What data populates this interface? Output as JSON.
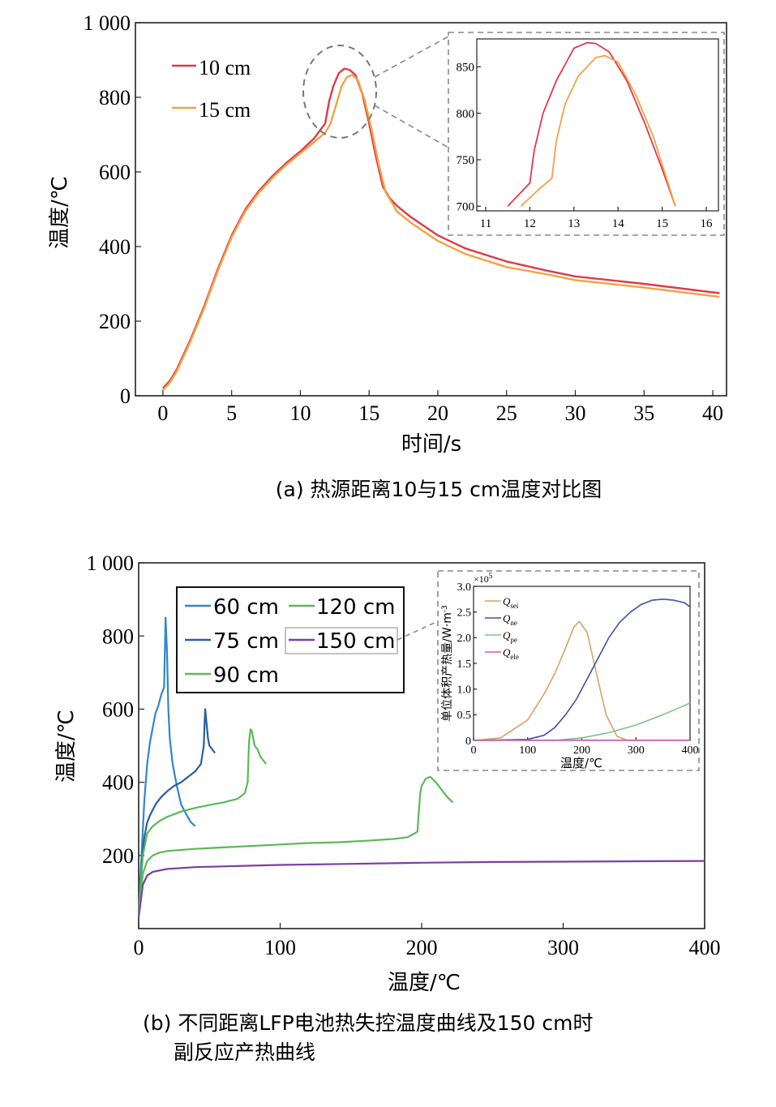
{
  "chart_data": [
    {
      "id": "a",
      "type": "line",
      "caption": "(a) 热源距离10与15 cm温度对比图",
      "xlabel": "时间/s",
      "ylabel": "温度/℃",
      "xlim": [
        -2,
        41
      ],
      "ylim": [
        0,
        1000
      ],
      "xticks": [
        "0",
        "5",
        "10",
        "15",
        "20",
        "25",
        "30",
        "35",
        "40"
      ],
      "yticks": [
        "0",
        "200",
        "400",
        "600",
        "800",
        "1 000"
      ],
      "series": [
        {
          "name": "10 cm",
          "color": "#e03a4a",
          "x": [
            0,
            0.5,
            1,
            1.5,
            2,
            3,
            4,
            5,
            6,
            7,
            8,
            9,
            10,
            11,
            11.8,
            12.1,
            12.4,
            12.8,
            13.2,
            13.6,
            14,
            14.5,
            15,
            15.5,
            16,
            16.5,
            17,
            18,
            19,
            20,
            22,
            25,
            28,
            30,
            35,
            40.5
          ],
          "y": [
            20,
            40,
            70,
            110,
            150,
            240,
            340,
            430,
            500,
            550,
            590,
            625,
            655,
            690,
            730,
            790,
            830,
            865,
            877,
            873,
            860,
            810,
            730,
            640,
            560,
            530,
            510,
            480,
            455,
            430,
            395,
            360,
            335,
            320,
            300,
            275
          ]
        },
        {
          "name": "15 cm",
          "color": "#f4a142",
          "x": [
            0,
            0.5,
            1,
            1.5,
            2,
            3,
            4,
            5,
            6,
            7,
            8,
            9,
            10,
            11,
            11.8,
            12.2,
            12.6,
            13,
            13.4,
            13.8,
            14.2,
            14.7,
            15.2,
            15.7,
            16.2,
            16.7,
            17,
            18,
            19,
            20,
            22,
            25,
            28,
            30,
            35,
            40.5
          ],
          "y": [
            15,
            35,
            65,
            105,
            145,
            235,
            335,
            425,
            495,
            545,
            585,
            620,
            650,
            680,
            705,
            730,
            780,
            830,
            855,
            860,
            845,
            790,
            710,
            620,
            545,
            515,
            495,
            465,
            440,
            415,
            380,
            345,
            325,
            310,
            290,
            265
          ]
        }
      ],
      "legend": {
        "position": "top-left"
      },
      "annotation": {
        "type": "circle",
        "target_x": 13.5,
        "target_y": 800
      },
      "inset": {
        "xlim": [
          11,
          16
        ],
        "ylim": [
          695,
          880
        ],
        "xticks": [
          "11",
          "12",
          "13",
          "14",
          "15",
          "16"
        ],
        "yticks": [
          "700",
          "750",
          "800",
          "850"
        ],
        "series": [
          {
            "name": "10 cm",
            "color": "#e03a4a",
            "x": [
              11.5,
              11.8,
              12.0,
              12.1,
              12.3,
              12.6,
              13.0,
              13.3,
              13.5,
              13.8,
              14.2,
              14.6,
              15.0,
              15.3
            ],
            "y": [
              700,
              715,
              725,
              760,
              800,
              835,
              870,
              876,
              875,
              866,
              835,
              790,
              740,
              700
            ]
          },
          {
            "name": "15 cm",
            "color": "#f4a142",
            "x": [
              11.8,
              12.2,
              12.5,
              12.6,
              12.8,
              13.1,
              13.5,
              13.7,
              14.0,
              14.4,
              14.8,
              15.1,
              15.3
            ],
            "y": [
              700,
              718,
              730,
              770,
              810,
              840,
              860,
              862,
              855,
              820,
              775,
              730,
              700
            ]
          }
        ]
      }
    },
    {
      "id": "b",
      "type": "line",
      "caption_line1": "(b) 不同距离LFP电池热失控温度曲线及150 cm时",
      "caption_line2": "副反应产热曲线",
      "xlabel": "温度/℃",
      "ylabel": "温度/℃",
      "xlim": [
        0,
        400
      ],
      "ylim": [
        0,
        1000
      ],
      "xticks": [
        "0",
        "100",
        "200",
        "300",
        "400"
      ],
      "yticks": [
        "200",
        "400",
        "600",
        "800",
        "1 000"
      ],
      "series": [
        {
          "name": "60 cm",
          "color": "#2f87c9",
          "x": [
            0,
            2,
            4,
            6,
            8,
            10,
            12,
            14,
            16,
            18,
            19,
            20,
            21,
            22,
            24,
            27,
            30,
            34,
            37,
            40
          ],
          "y": [
            40,
            200,
            350,
            450,
            510,
            550,
            590,
            610,
            640,
            660,
            850,
            760,
            600,
            520,
            450,
            390,
            340,
            310,
            290,
            280
          ]
        },
        {
          "name": "75 cm",
          "color": "#2b5e9e",
          "x": [
            0,
            2,
            4,
            6,
            8,
            12,
            16,
            20,
            25,
            30,
            35,
            40,
            44,
            46,
            47,
            48,
            49,
            50,
            52,
            54
          ],
          "y": [
            40,
            170,
            250,
            290,
            310,
            340,
            360,
            375,
            390,
            400,
            415,
            430,
            450,
            500,
            600,
            560,
            520,
            500,
            490,
            480
          ]
        },
        {
          "name": "90 cm",
          "color": "#5cb85a",
          "x": [
            0,
            3,
            6,
            10,
            15,
            20,
            30,
            40,
            50,
            60,
            70,
            75,
            77,
            78,
            79,
            80,
            81,
            82,
            84,
            86,
            88,
            90
          ],
          "y": [
            40,
            200,
            260,
            280,
            295,
            305,
            320,
            330,
            338,
            345,
            355,
            370,
            400,
            510,
            545,
            540,
            520,
            500,
            490,
            470,
            460,
            450
          ]
        },
        {
          "name": "120 cm",
          "color": "#5cb85a",
          "x": [
            0,
            3,
            6,
            10,
            15,
            20,
            40,
            60,
            80,
            100,
            120,
            140,
            160,
            180,
            190,
            195,
            197,
            198,
            199,
            200,
            203,
            206,
            210,
            214,
            218,
            222
          ],
          "y": [
            40,
            150,
            185,
            200,
            208,
            212,
            218,
            222,
            226,
            230,
            234,
            236,
            240,
            245,
            250,
            260,
            265,
            320,
            370,
            390,
            410,
            415,
            400,
            380,
            360,
            345
          ]
        },
        {
          "name": "150 cm",
          "color": "#7a3fa3",
          "x": [
            0,
            3,
            6,
            10,
            20,
            40,
            60,
            80,
            100,
            150,
            200,
            250,
            300,
            350,
            400
          ],
          "y": [
            30,
            120,
            145,
            155,
            163,
            168,
            170,
            172,
            174,
            177,
            180,
            182,
            183,
            184,
            185
          ]
        }
      ],
      "legend": {
        "position": "top-left"
      },
      "inset": {
        "ylabel": "单位体积产热量/W·m",
        "ylabel_sup": "-3",
        "multiplier": "×10",
        "multiplier_exp": "5",
        "xlabel": "温度/℃",
        "xlim": [
          0,
          400
        ],
        "ylim": [
          0,
          3.0
        ],
        "xticks": [
          "0",
          "100",
          "200",
          "300",
          "400"
        ],
        "yticks": [
          "0",
          "0.5",
          "1.0",
          "1.5",
          "2.0",
          "2.5",
          "3.0"
        ],
        "legend_labels": [
          "Q",
          "Q",
          "Q",
          "Q"
        ],
        "legend_subs": [
          "sei",
          "ne",
          "pe",
          "ele"
        ],
        "series": [
          {
            "name": "Q_sei",
            "color": "#d9a066",
            "x": [
              0,
              50,
              100,
              130,
              150,
              170,
              185,
              195,
              210,
              225,
              245,
              265,
              285,
              400
            ],
            "y": [
              0,
              0.05,
              0.4,
              0.9,
              1.3,
              1.8,
              2.2,
              2.32,
              2.1,
              1.4,
              0.5,
              0.08,
              0,
              0
            ]
          },
          {
            "name": "Q_ne",
            "color": "#3f52a3",
            "x": [
              0,
              100,
              130,
              150,
              170,
              190,
              210,
              230,
              250,
              270,
              290,
              310,
              330,
              350,
              370,
              390,
              400
            ],
            "y": [
              0,
              0.02,
              0.1,
              0.25,
              0.5,
              0.8,
              1.2,
              1.6,
              2.0,
              2.3,
              2.5,
              2.65,
              2.73,
              2.75,
              2.73,
              2.68,
              2.6
            ]
          },
          {
            "name": "Q_pe",
            "color": "#7fc08a",
            "x": [
              0,
              150,
              200,
              250,
              300,
              350,
              400
            ],
            "y": [
              0,
              0,
              0.05,
              0.15,
              0.3,
              0.5,
              0.73
            ]
          },
          {
            "name": "Q_ele",
            "color": "#d45bb5",
            "x": [
              0,
              400
            ],
            "y": [
              0.005,
              0.005
            ]
          }
        ]
      }
    }
  ]
}
